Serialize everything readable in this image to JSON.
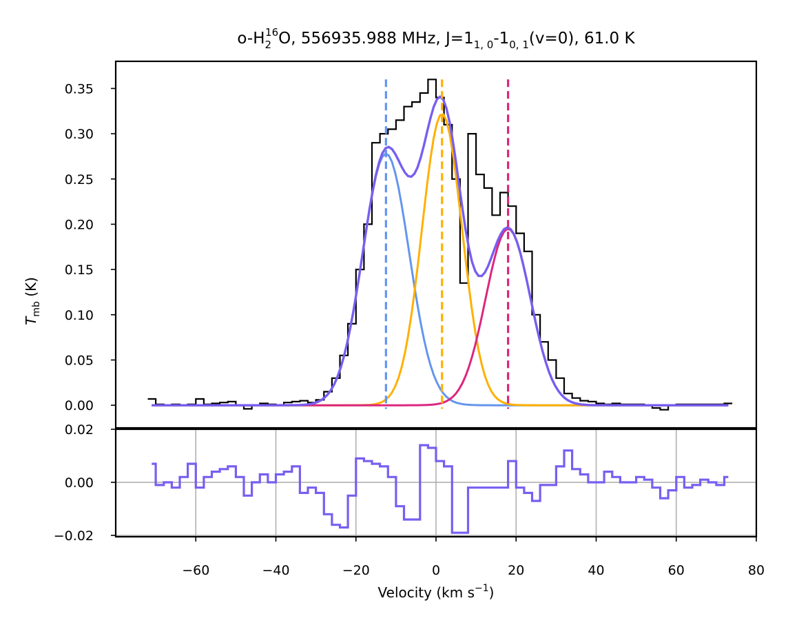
{
  "chart_data": [
    {
      "type": "line",
      "panel": "spectrum",
      "title": {
        "species_base": "o-H",
        "species_sub": "2",
        "species_sup": "16",
        "species_tail": "O",
        "freq_part": ", 556935.988 MHz, J=1",
        "lower_sub1": "1, 0",
        "dash": "-1",
        "lower_sub2": "0, 1",
        "tail": "(v=0), 61.0 K"
      },
      "ylabel": {
        "main": "T",
        "sub": "mb",
        "unit": " (K)"
      },
      "xlim": [
        -80,
        80
      ],
      "ylim": [
        -0.025,
        0.38
      ],
      "yticks": [
        "0.00",
        "0.05",
        "0.10",
        "0.15",
        "0.20",
        "0.25",
        "0.30",
        "0.35"
      ],
      "ytick_values": [
        0,
        0.05,
        0.1,
        0.15,
        0.2,
        0.25,
        0.3,
        0.35
      ],
      "velocity_markers": [
        {
          "name": "blue",
          "x": -12.5,
          "color": "#6495ed"
        },
        {
          "name": "orange",
          "x": 1.5,
          "color": "#ffb000"
        },
        {
          "name": "magenta",
          "x": 18,
          "color": "#dc267f"
        }
      ],
      "observed": {
        "name": "observed spectrum",
        "color": "#000000",
        "x": [
          -71,
          -69,
          -67,
          -65,
          -63,
          -61,
          -59,
          -57,
          -55,
          -53,
          -51,
          -49,
          -47,
          -45,
          -43,
          -41,
          -39,
          -37,
          -35,
          -33,
          -31,
          -29,
          -27,
          -25,
          -23,
          -21,
          -19,
          -17,
          -15,
          -13,
          -11,
          -9,
          -7,
          -5,
          -3,
          -1,
          1,
          3,
          5,
          7,
          9,
          11,
          13,
          15,
          17,
          19,
          21,
          23,
          25,
          27,
          29,
          31,
          33,
          35,
          37,
          39,
          41,
          43,
          45,
          47,
          49,
          51,
          53,
          55,
          57,
          59,
          61,
          63,
          65,
          67,
          69,
          71,
          73
        ],
        "y": [
          0.007,
          0.001,
          0.0,
          0.001,
          0.0,
          0.001,
          0.007,
          0.001,
          0.002,
          0.003,
          0.004,
          0.0,
          -0.004,
          0.0,
          0.002,
          0.001,
          0.0,
          0.003,
          0.004,
          0.005,
          0.003,
          0.006,
          0.015,
          0.03,
          0.055,
          0.09,
          0.15,
          0.2,
          0.29,
          0.3,
          0.305,
          0.315,
          0.33,
          0.335,
          0.345,
          0.36,
          0.34,
          0.31,
          0.25,
          0.135,
          0.3,
          0.255,
          0.24,
          0.21,
          0.235,
          0.22,
          0.19,
          0.17,
          0.1,
          0.07,
          0.05,
          0.03,
          0.013,
          0.008,
          0.005,
          0.004,
          0.002,
          0.001,
          0.002,
          0.001,
          0.001,
          0.001,
          0.0,
          -0.003,
          -0.005,
          0.0,
          0.001,
          0.001,
          0.001,
          0.001,
          0.001,
          0.001,
          0.002
        ]
      },
      "series": [
        {
          "name": "blue component",
          "color": "#6495ed",
          "amp": 0.278,
          "center": -12.5,
          "sigma": 5.8
        },
        {
          "name": "orange component",
          "color": "#ffb000",
          "amp": 0.322,
          "center": 1.5,
          "sigma": 5.0
        },
        {
          "name": "magenta component",
          "color": "#dc267f",
          "amp": 0.195,
          "center": 18.0,
          "sigma": 5.6
        },
        {
          "name": "total fit",
          "color": "#785ef0",
          "components": "sum",
          "xrange": [
            -71,
            73
          ]
        }
      ]
    },
    {
      "type": "line",
      "panel": "residual",
      "xlabel": {
        "main": "Velocity (km s",
        "sup": "−1",
        "tail": ")"
      },
      "xlim": [
        -80,
        80
      ],
      "ylim": [
        -0.0205,
        0.02
      ],
      "xticks": [
        "−60",
        "−40",
        "−20",
        "0",
        "20",
        "40",
        "60",
        "80"
      ],
      "xtick_values": [
        -60,
        -40,
        -20,
        0,
        20,
        40,
        60,
        80
      ],
      "yticks": [
        "−0.02",
        "0.00",
        "0.02"
      ],
      "ytick_values": [
        -0.02,
        0,
        0.02
      ],
      "grid": true,
      "series": [
        {
          "name": "residual",
          "color": "#785ef0",
          "x": [
            -71,
            -69,
            -67,
            -65,
            -63,
            -61,
            -59,
            -57,
            -55,
            -53,
            -51,
            -49,
            -47,
            -45,
            -43,
            -41,
            -39,
            -37,
            -35,
            -33,
            -31,
            -29,
            -27,
            -25,
            -23,
            -21,
            -19,
            -17,
            -15,
            -13,
            -11,
            -9,
            -7,
            -5,
            -3,
            -1,
            1,
            3,
            5,
            7,
            9,
            11,
            13,
            15,
            17,
            19,
            21,
            23,
            25,
            27,
            29,
            31,
            33,
            35,
            37,
            39,
            41,
            43,
            45,
            47,
            49,
            51,
            53,
            55,
            57,
            59,
            61,
            63,
            65,
            67,
            69,
            71,
            73
          ],
          "y": [
            0.007,
            -0.001,
            0.0,
            -0.002,
            0.002,
            0.007,
            -0.002,
            0.002,
            0.004,
            0.005,
            0.006,
            0.002,
            -0.005,
            0.0,
            0.003,
            0.0,
            0.003,
            0.004,
            0.006,
            -0.004,
            -0.002,
            -0.004,
            -0.012,
            -0.016,
            -0.017,
            -0.005,
            0.009,
            0.008,
            0.007,
            0.006,
            0.002,
            -0.009,
            -0.014,
            -0.014,
            0.014,
            0.013,
            0.008,
            0.006,
            -0.019,
            -0.019,
            -0.002,
            -0.002,
            -0.002,
            -0.002,
            -0.002,
            0.008,
            -0.002,
            -0.004,
            -0.007,
            -0.001,
            -0.001,
            0.006,
            0.012,
            0.005,
            0.003,
            0.0,
            0.0,
            0.004,
            0.002,
            0.0,
            0.0,
            0.002,
            0.001,
            -0.002,
            -0.006,
            -0.003,
            0.002,
            -0.002,
            -0.001,
            0.001,
            0.0,
            -0.001,
            0.002
          ]
        }
      ]
    }
  ]
}
